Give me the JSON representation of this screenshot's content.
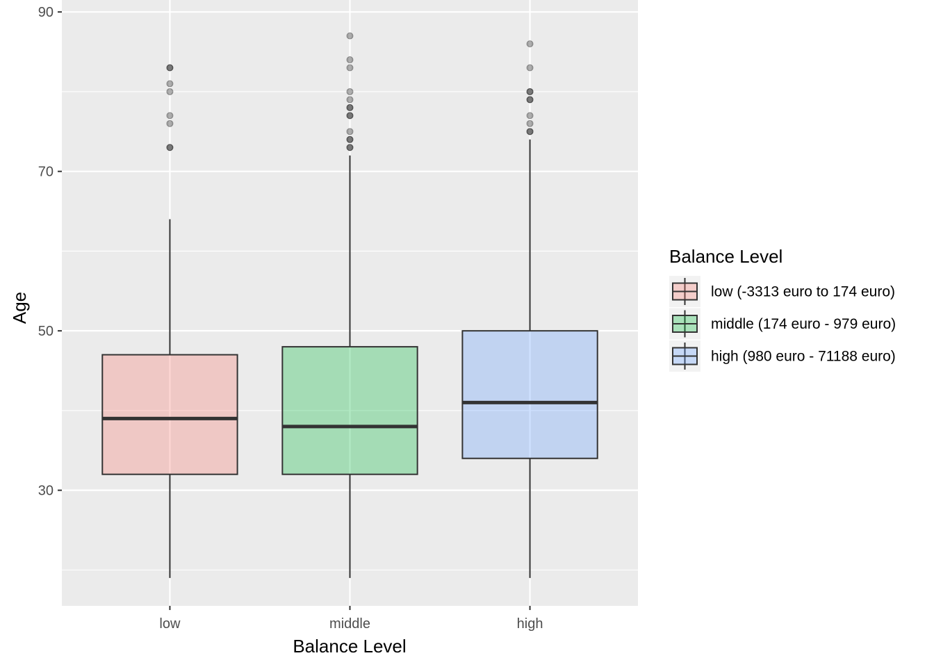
{
  "chart_data": {
    "type": "boxplot",
    "xlabel": "Balance Level",
    "ylabel": "Age",
    "ylim": [
      15.5,
      91.5
    ],
    "yticks": [
      30,
      50,
      70,
      90
    ],
    "grid": true,
    "legend": {
      "title": "Balance Level",
      "placement": "right",
      "entries": [
        "low (-3313 euro to 174 euro)",
        "middle (174 euro - 979 euro)",
        "high (980 euro - 71188 euro)"
      ]
    },
    "categories": [
      "low",
      "middle",
      "high"
    ],
    "series": [
      {
        "category": "low",
        "color": "#f8766d",
        "whisker_low": 19,
        "q1": 32,
        "median": 39,
        "q3": 47,
        "whisker_high": 64,
        "outliers": [
          73,
          73,
          76,
          77,
          80,
          81,
          83,
          83
        ]
      },
      {
        "category": "middle",
        "color": "#00ba38",
        "whisker_low": 19,
        "q1": 32,
        "median": 38,
        "q3": 48,
        "whisker_high": 72,
        "outliers": [
          73,
          73,
          74,
          74,
          75,
          77,
          77,
          78,
          78,
          79,
          80,
          83,
          84,
          87
        ]
      },
      {
        "category": "high",
        "color": "#619cff",
        "whisker_low": 19,
        "q1": 34,
        "median": 41,
        "q3": 50,
        "whisker_high": 74,
        "outliers": [
          75,
          75,
          76,
          77,
          79,
          79,
          80,
          80,
          83,
          86
        ]
      }
    ]
  }
}
